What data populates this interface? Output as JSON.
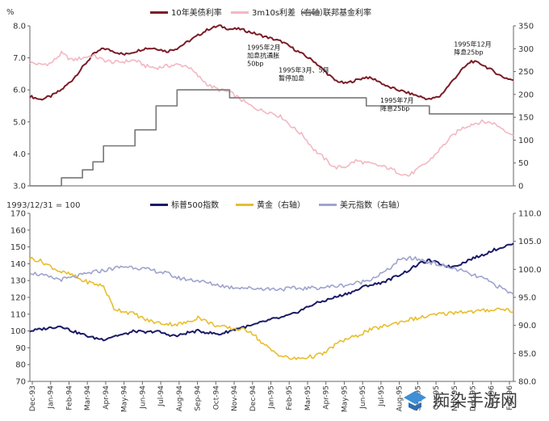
{
  "chart_data": [
    {
      "type": "line",
      "ylabel": "%",
      "ylim": [
        3.0,
        8.0
      ],
      "yticks": [
        "3.0",
        "4.0",
        "5.0",
        "6.0",
        "7.0",
        "8.0"
      ],
      "y2lim": [
        0,
        350
      ],
      "y2ticks": [
        "0",
        "50",
        "100",
        "150",
        "200",
        "250",
        "300",
        "350"
      ],
      "legend_position": "top",
      "grid": false,
      "x": [
        0,
        3,
        6,
        9,
        12,
        15,
        18,
        21,
        24,
        27,
        30,
        33,
        36,
        39,
        42,
        45,
        48,
        51,
        54,
        57,
        60,
        63,
        66,
        69,
        72,
        75,
        78,
        81,
        84,
        87,
        90,
        93,
        96,
        99,
        102,
        105,
        108,
        111,
        114,
        117,
        120,
        123,
        126,
        129,
        132,
        135,
        138
      ],
      "series": [
        {
          "name": "10年美债利率",
          "axis": "left",
          "color": "#7b1c26",
          "values": [
            5.8,
            5.7,
            5.8,
            6.0,
            6.3,
            6.7,
            7.1,
            7.3,
            7.2,
            7.1,
            7.2,
            7.3,
            7.3,
            7.2,
            7.3,
            7.5,
            7.7,
            7.9,
            8.0,
            7.9,
            7.9,
            7.8,
            7.7,
            7.6,
            7.5,
            7.3,
            7.1,
            6.9,
            6.6,
            6.3,
            6.2,
            6.3,
            6.4,
            6.3,
            6.1,
            6.0,
            5.9,
            5.8,
            5.7,
            5.8,
            6.2,
            6.6,
            6.9,
            6.8,
            6.6,
            6.4,
            6.3
          ]
        },
        {
          "name": "3m10s利差（右轴）",
          "axis": "right",
          "color": "#f2b8c2",
          "values": [
            270,
            265,
            268,
            290,
            275,
            280,
            285,
            275,
            270,
            272,
            275,
            262,
            258,
            262,
            265,
            262,
            240,
            220,
            210,
            205,
            190,
            175,
            165,
            160,
            150,
            128,
            110,
            80,
            60,
            40,
            42,
            55,
            50,
            45,
            40,
            30,
            22,
            38,
            55,
            80,
            105,
            125,
            135,
            140,
            138,
            125,
            110
          ]
        },
        {
          "name": "联邦基金利率",
          "axis": "left",
          "color": "#777777",
          "values": [
            3.0,
            3.0,
            3.0,
            3.25,
            3.25,
            3.5,
            3.75,
            4.25,
            4.25,
            4.25,
            4.75,
            4.75,
            5.5,
            5.5,
            6.0,
            6.0,
            6.0,
            6.0,
            6.0,
            5.75,
            5.75,
            5.75,
            5.75,
            5.75,
            5.75,
            5.75,
            5.75,
            5.75,
            5.75,
            5.75,
            5.75,
            5.75,
            5.5,
            5.5,
            5.5,
            5.5,
            5.5,
            5.5,
            5.25,
            5.25,
            5.25,
            5.25,
            5.25,
            5.25,
            5.25,
            5.25,
            5.25
          ]
        }
      ],
      "annotations": [
        {
          "lines": [
            "1995年2月",
            "加息抗通胀",
            "50bp"
          ],
          "x": 62,
          "y": 7.25
        },
        {
          "lines": [
            "1995年3月、5月",
            "暂停加息"
          ],
          "x": 71,
          "y": 6.55
        },
        {
          "lines": [
            "1995年7月",
            "降息25bp"
          ],
          "x": 100,
          "y": 5.6
        },
        {
          "lines": [
            "1995年12月",
            "降息25bp"
          ],
          "x": 121,
          "y": 7.35
        }
      ]
    },
    {
      "type": "line",
      "ylabel": "1993/12/31 = 100",
      "ylim": [
        70,
        170
      ],
      "yticks": [
        "70",
        "80",
        "90",
        "100",
        "110",
        "120",
        "130",
        "140",
        "150",
        "160",
        "170"
      ],
      "y2lim": [
        80,
        110
      ],
      "y2ticks": [
        "80.0",
        "85.0",
        "90.0",
        "95.0",
        "100.0",
        "105.0",
        "110.0"
      ],
      "legend_position": "top",
      "grid": false,
      "x": [
        0,
        3,
        6,
        9,
        12,
        15,
        18,
        21,
        24,
        27,
        30,
        33,
        36,
        39,
        42,
        45,
        48,
        51,
        54,
        57,
        60,
        63,
        66,
        69,
        72,
        75,
        78,
        81,
        84,
        87,
        90,
        93,
        96,
        99,
        102,
        105,
        108,
        111,
        114,
        117,
        120,
        123,
        126,
        129,
        132,
        135,
        138
      ],
      "series": [
        {
          "name": "标普500指数",
          "axis": "left",
          "color": "#1a1a66",
          "values": [
            100,
            101,
            102,
            103,
            100,
            98,
            96,
            95,
            97,
            98,
            100,
            99,
            100,
            98,
            97,
            99,
            100,
            99,
            98,
            100,
            102,
            103,
            105,
            107,
            108,
            110,
            113,
            116,
            118,
            120,
            122,
            124,
            127,
            128,
            130,
            133,
            136,
            140,
            142,
            140,
            138,
            140,
            143,
            145,
            148,
            150,
            152
          ]
        },
        {
          "name": "黄金（右轴）",
          "axis": "right",
          "color": "#e8be2e",
          "values": [
            102,
            101.5,
            100.5,
            99.5,
            99,
            98,
            97.5,
            97,
            93,
            92.5,
            92,
            91,
            90.5,
            90.3,
            90.2,
            90.5,
            91.5,
            90.5,
            89.8,
            89.5,
            89.3,
            89,
            87,
            85.5,
            84.5,
            84,
            84.2,
            84.5,
            85,
            86.5,
            87.5,
            88,
            89,
            89.5,
            90,
            90.5,
            91,
            91.3,
            91.7,
            92,
            92.2,
            92.5,
            92.4,
            92.6,
            92.8,
            93,
            92.5
          ]
        },
        {
          "name": "美元指数（右轴）",
          "axis": "right",
          "color": "#9ea4cc",
          "values": [
            99.5,
            99,
            98.5,
            98.2,
            98.5,
            99,
            99.5,
            99.8,
            100.2,
            100.5,
            100.4,
            100,
            99.7,
            99.3,
            98.5,
            98.2,
            98,
            97.5,
            97.2,
            96.8,
            96.8,
            96.6,
            96.6,
            96.5,
            96.5,
            96.6,
            96.6,
            96.7,
            96.8,
            97,
            97.2,
            97.5,
            98,
            98.8,
            99.8,
            101.5,
            102,
            101.8,
            101.3,
            100.8,
            100.3,
            99.8,
            99,
            98.5,
            97.5,
            96.5,
            95.5
          ]
        }
      ]
    }
  ],
  "x_axis": {
    "tick_labels": [
      "Dec-93",
      "Jan-94",
      "Feb-94",
      "Mar-94",
      "Apr-94",
      "May-94",
      "Jun-94",
      "Jul-94",
      "Aug-94",
      "Sep-94",
      "Oct-94",
      "Nov-94",
      "Dec-94",
      "Jan-95",
      "Feb-95",
      "Mar-95",
      "Apr-95",
      "May-95",
      "Jun-95",
      "Jul-95",
      "Aug-95",
      "Sep-95",
      "Oct-95",
      "Nov-95",
      "Dec-95",
      "Jan-96",
      "Feb-96"
    ]
  },
  "watermark": {
    "text": "痴染手游网"
  }
}
